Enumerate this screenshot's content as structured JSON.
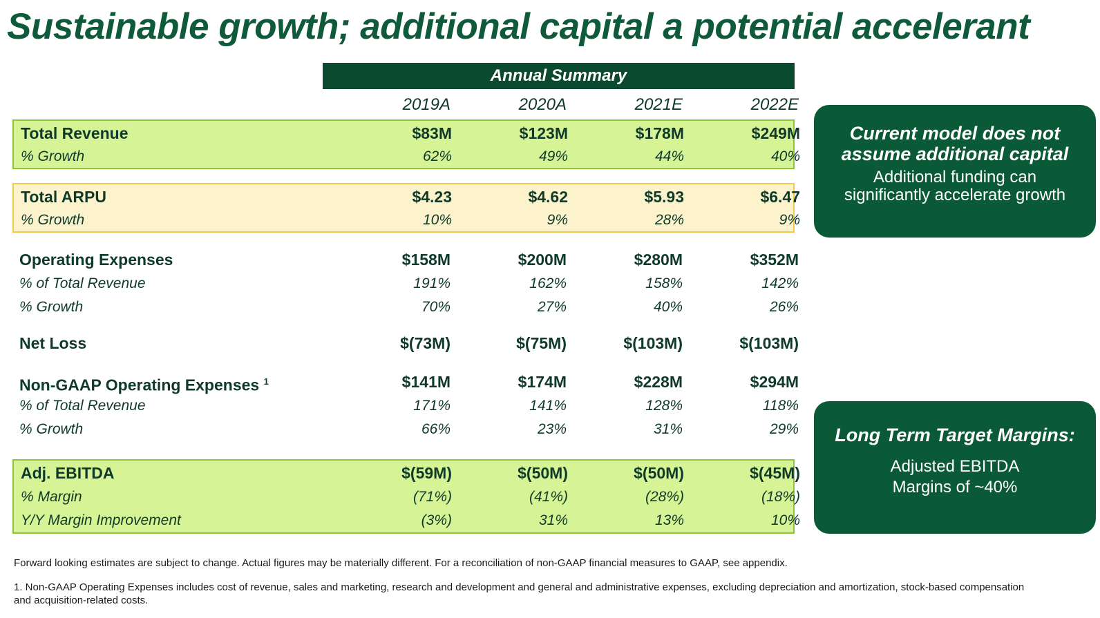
{
  "title": "Sustainable growth; additional capital a potential accelerant",
  "summary_header": "Annual Summary",
  "years": [
    "2019A",
    "2020A",
    "2021E",
    "2022E"
  ],
  "total_revenue": {
    "label": "Total Revenue",
    "values": [
      "$83M",
      "$123M",
      "$178M",
      "$249M"
    ],
    "growth_label": "% Growth",
    "growth": [
      "62%",
      "49%",
      "44%",
      "40%"
    ]
  },
  "total_arpu": {
    "label": "Total ARPU",
    "values": [
      "$4.23",
      "$4.62",
      "$5.93",
      "$6.47"
    ],
    "growth_label": "% Growth",
    "growth": [
      "10%",
      "9%",
      "28%",
      "9%"
    ]
  },
  "operating_expenses": {
    "label": "Operating Expenses",
    "values": [
      "$158M",
      "$200M",
      "$280M",
      "$352M"
    ],
    "pct_rev_label": "% of Total Revenue",
    "pct_rev": [
      "191%",
      "162%",
      "158%",
      "142%"
    ],
    "growth_label": "% Growth",
    "growth": [
      "70%",
      "27%",
      "40%",
      "26%"
    ]
  },
  "net_loss": {
    "label": "Net Loss",
    "values": [
      "$(73M)",
      "$(75M)",
      "$(103M)",
      "$(103M)"
    ]
  },
  "non_gaap_opex": {
    "label": "Non-GAAP Operating Expenses",
    "footnote_mark": "1",
    "values": [
      "$141M",
      "$174M",
      "$228M",
      "$294M"
    ],
    "pct_rev_label": "% of Total Revenue",
    "pct_rev": [
      "171%",
      "141%",
      "128%",
      "118%"
    ],
    "growth_label": "% Growth",
    "growth": [
      "66%",
      "23%",
      "31%",
      "29%"
    ]
  },
  "adj_ebitda": {
    "label": "Adj. EBITDA",
    "values": [
      "$(59M)",
      "$(50M)",
      "$(50M)",
      "$(45M)"
    ],
    "margin_label": "% Margin",
    "margin": [
      "(71%)",
      "(41%)",
      "(28%)",
      "(18%)"
    ],
    "improvement_label": "Y/Y Margin Improvement",
    "improvement": [
      "(3%)",
      "31%",
      "13%",
      "10%"
    ]
  },
  "callout_capital": {
    "heading_line1": "Current model does not",
    "heading_line2": "assume additional capital",
    "body_line1": "Additional funding can",
    "body_line2": "significantly accelerate growth"
  },
  "callout_margins": {
    "heading": "Long Term Target Margins:",
    "body_line1": "Adjusted EBITDA",
    "body_line2": "Margins of ~40%"
  },
  "footnotes": {
    "disclaimer": "Forward looking estimates are subject to change. Actual figures may be materially different. For a reconciliation of non-GAAP financial measures to GAAP, see appendix.",
    "note1": "1. Non-GAAP Operating Expenses includes cost of revenue, sales and marketing, research and development and general and administrative expenses, excluding depreciation and amortization, stock-based compensation and acquisition-related costs."
  },
  "colors": {
    "dark_green": "#0b5a37",
    "highlight_green": "#d6f396",
    "highlight_yellow": "#fcf3cc"
  }
}
